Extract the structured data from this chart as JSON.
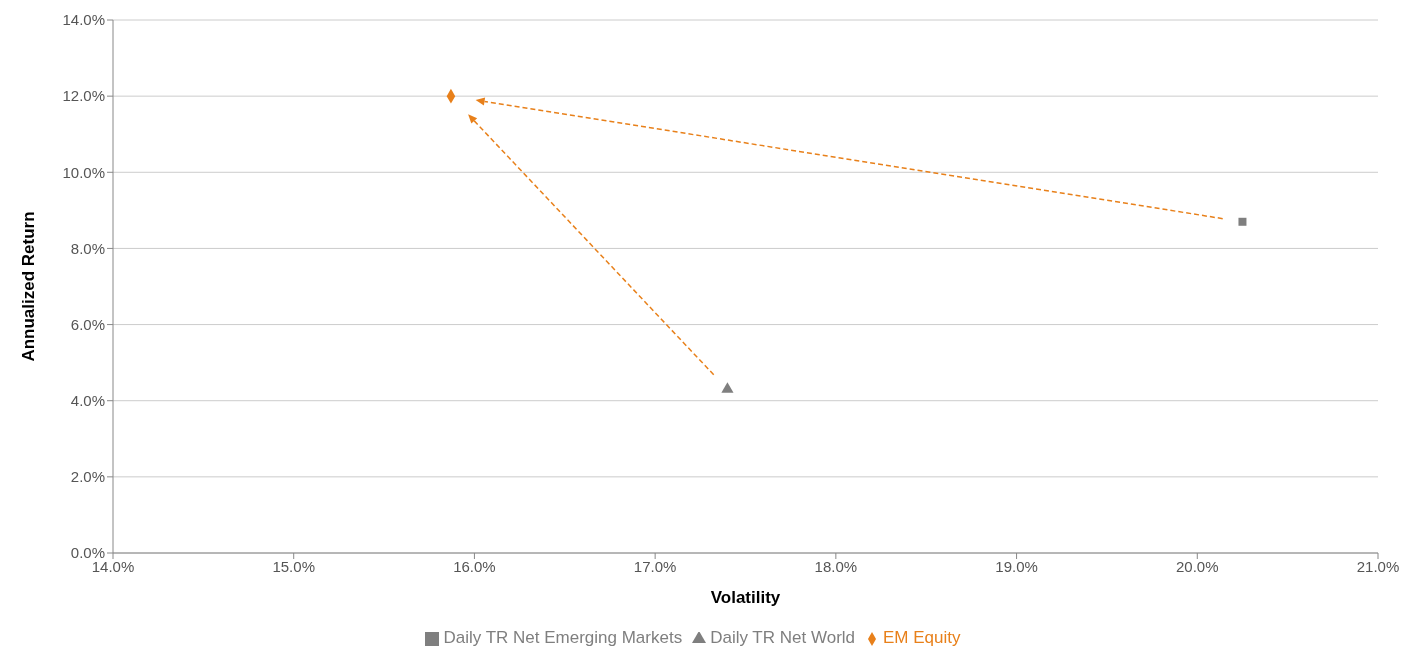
{
  "chart_data": {
    "type": "scatter",
    "xlabel": "Volatility",
    "ylabel": "Annualized Return",
    "series": [
      {
        "name": "Daily TR Net Emerging Markets",
        "color": "#7f7f7f",
        "marker": "square",
        "x": [
          20.25
        ],
        "values": [
          8.7
        ]
      },
      {
        "name": "EM Equity",
        "color": "#e8801a",
        "marker": "diamond",
        "x": [
          15.87
        ],
        "values": [
          12.0
        ]
      },
      {
        "name": "Daily TR Net World",
        "color": "#7f7f7f",
        "marker": "triangle",
        "x": [
          17.4
        ],
        "values": [
          4.3
        ]
      }
    ],
    "xlim": [
      14,
      21
    ],
    "xticks": [
      {
        "value": 14,
        "label": "14.0%"
      },
      {
        "value": 15,
        "label": "15.0%"
      },
      {
        "value": 16,
        "label": "16.0%"
      },
      {
        "value": 17,
        "label": "17.0%"
      },
      {
        "value": 18,
        "label": "18.0%"
      },
      {
        "value": 19,
        "label": "19.0%"
      },
      {
        "value": 20,
        "label": "20.0%"
      },
      {
        "value": 21,
        "label": "21.0%"
      }
    ],
    "ylim": [
      0,
      14
    ],
    "yticks": [
      {
        "value": 0,
        "label": "0.0%"
      },
      {
        "value": 2,
        "label": "2.0%"
      },
      {
        "value": 4,
        "label": "4.0%"
      },
      {
        "value": 6,
        "label": "6.0%"
      },
      {
        "value": 8,
        "label": "8.0%"
      },
      {
        "value": 10,
        "label": "10.0%"
      },
      {
        "value": 12,
        "label": "12.0%"
      },
      {
        "value": 14,
        "label": "14.0%"
      }
    ],
    "grid": "y",
    "legend": "bottom"
  }
}
